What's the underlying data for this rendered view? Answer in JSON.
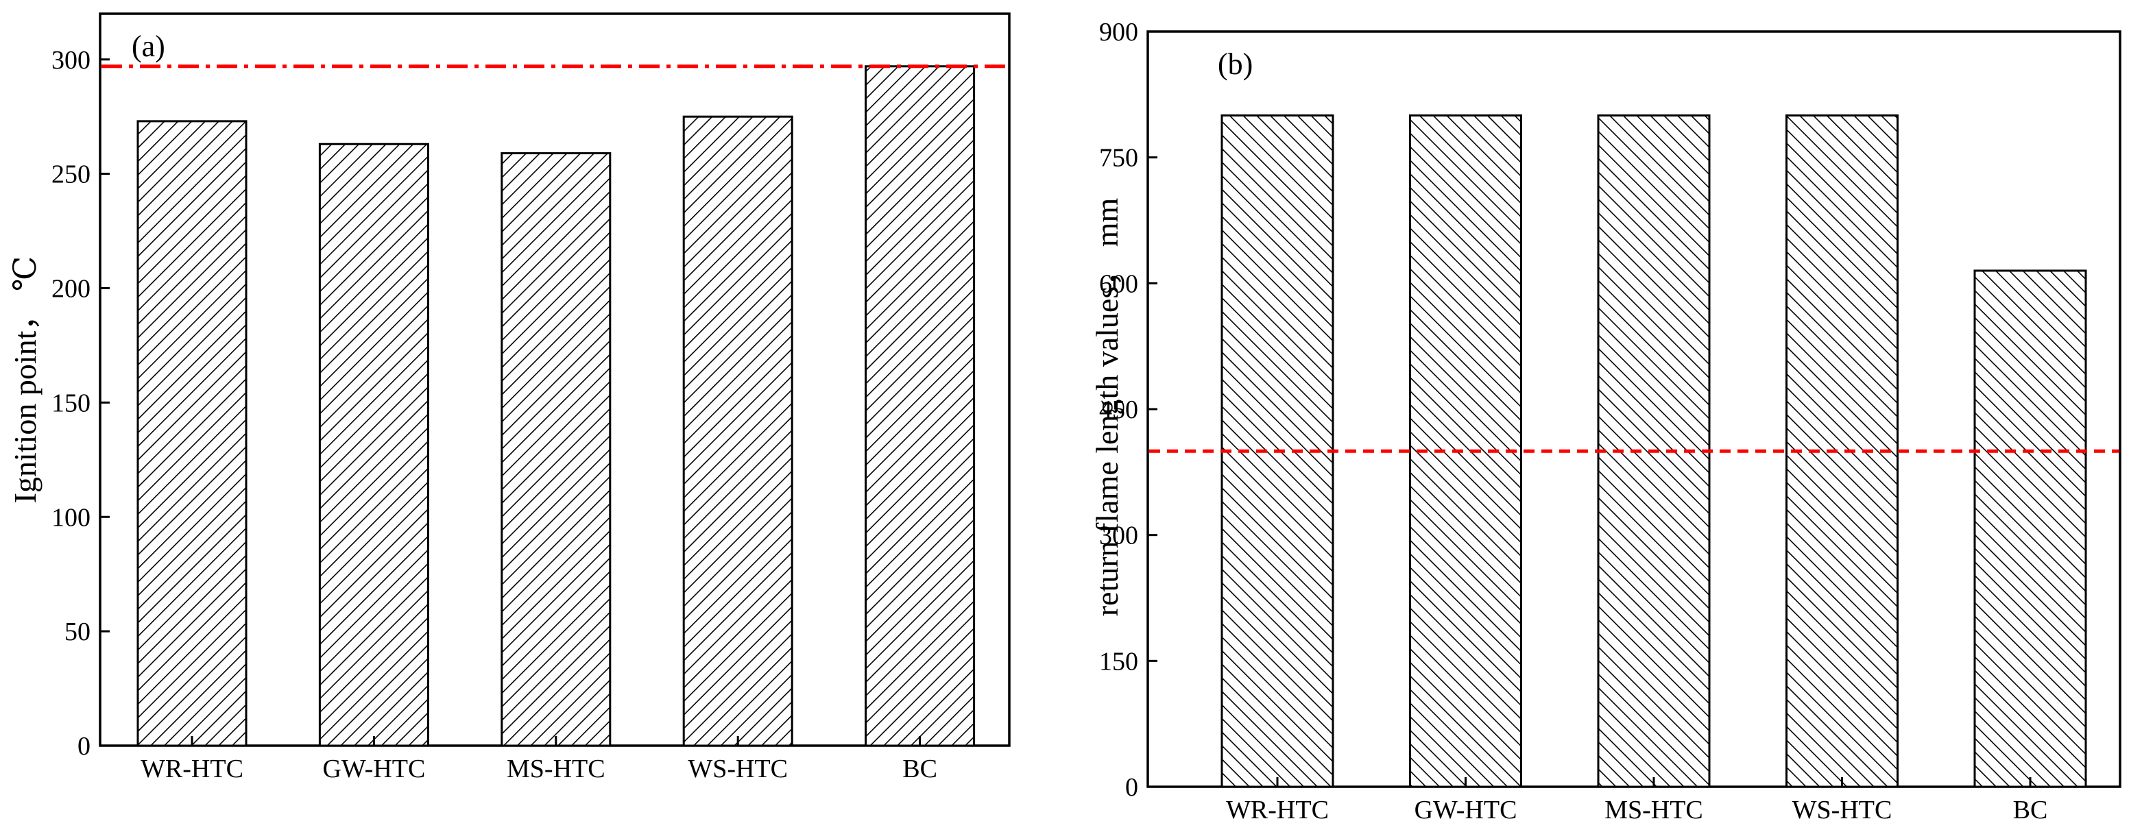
{
  "chart_data": [
    {
      "type": "bar",
      "panel_label": "(a)",
      "categories": [
        "WR-HTC",
        "GW-HTC",
        "MS-HTC",
        "WS-HTC",
        "BC"
      ],
      "values": [
        273,
        263,
        259,
        275,
        297
      ],
      "xlabel": "",
      "ylabel": "Ignition point， ℃",
      "ylim": [
        0,
        320
      ],
      "yticks": [
        0,
        50,
        100,
        150,
        200,
        250,
        300
      ],
      "reference_line": {
        "value": 297,
        "style": "dash-dot",
        "color": "#ff0000"
      },
      "bar_fill": "hatch-forward",
      "grid": false
    },
    {
      "type": "bar",
      "panel_label": "(b)",
      "categories": [
        "WR-HTC",
        "GW-HTC",
        "MS-HTC",
        "WS-HTC",
        "BC"
      ],
      "values": [
        800,
        800,
        800,
        800,
        615
      ],
      "xlabel": "",
      "ylabel": "return flame length values， mm",
      "ylim": [
        0,
        900
      ],
      "yticks": [
        0,
        150,
        300,
        450,
        600,
        750,
        900
      ],
      "reference_line": {
        "value": 400,
        "style": "dashed",
        "color": "#ff0000"
      },
      "bar_fill": "hatch-backward",
      "grid": false
    }
  ]
}
